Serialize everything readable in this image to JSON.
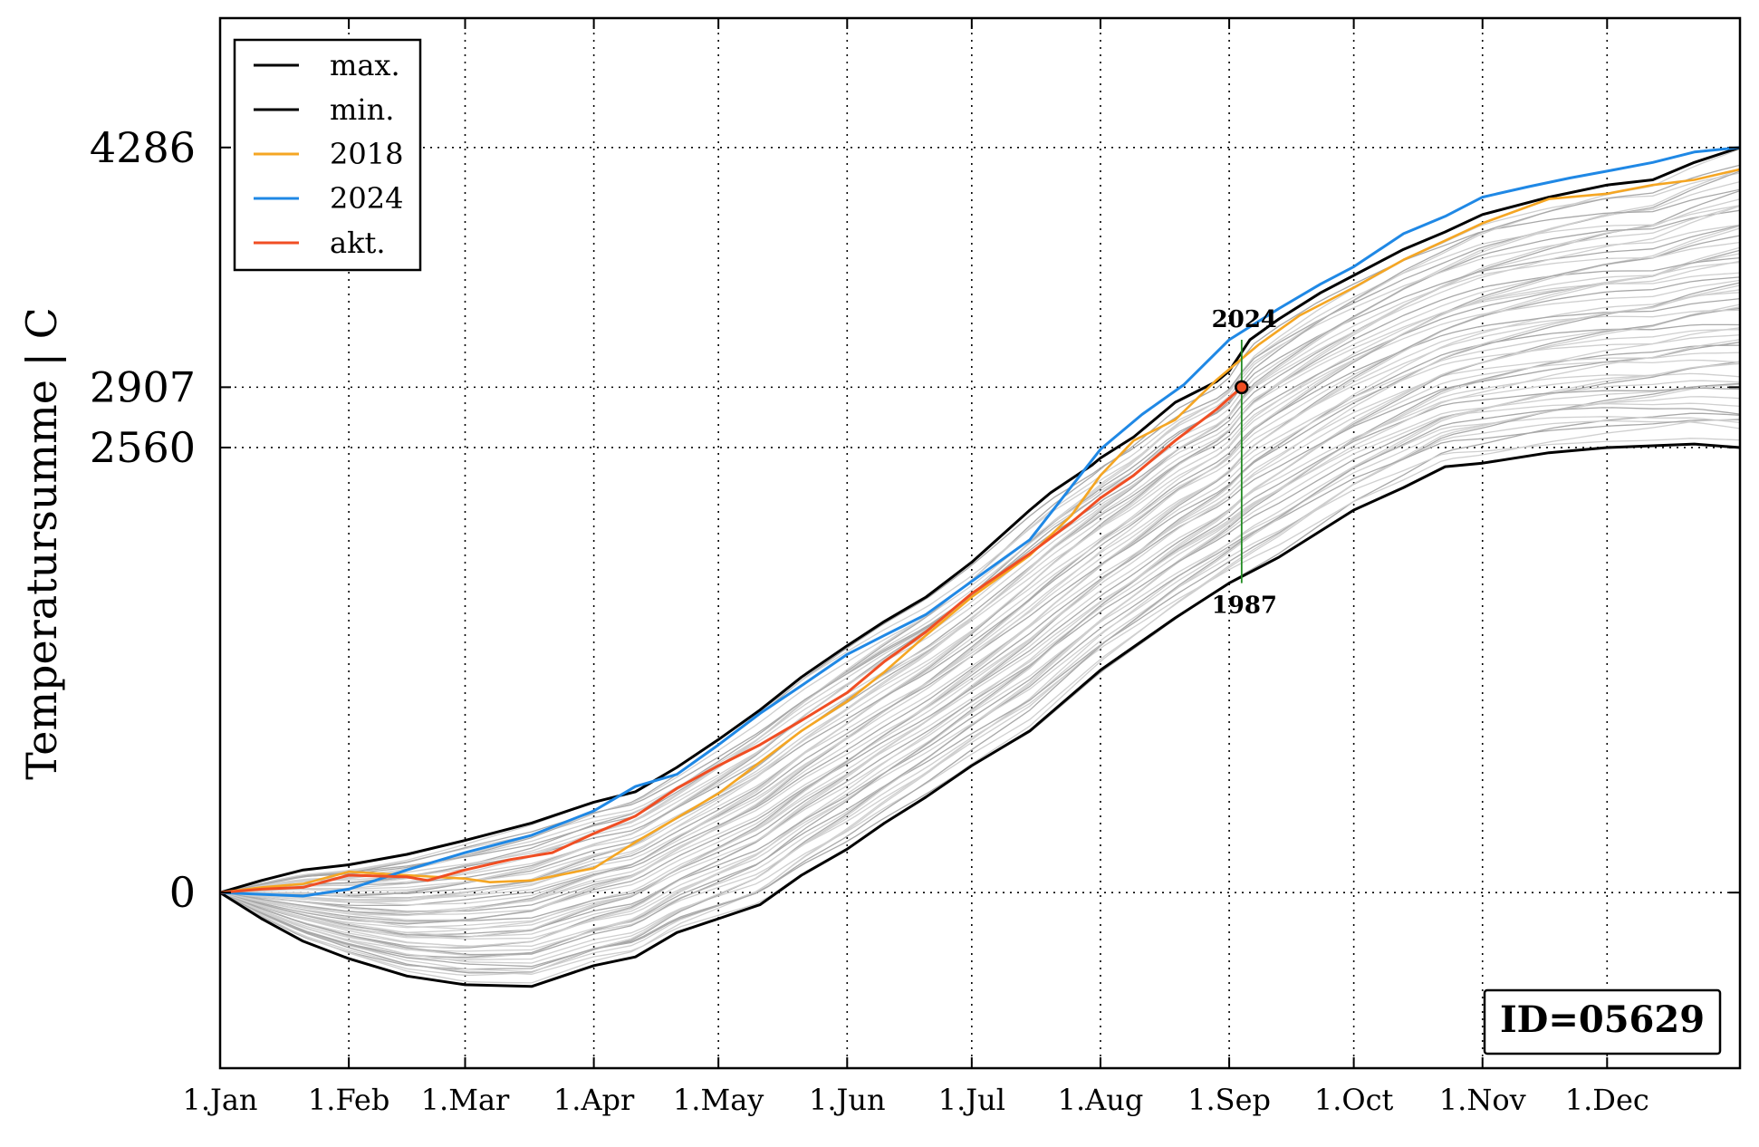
{
  "chart_data": {
    "type": "line",
    "ylabel": "Temperatursumme | C",
    "x_ticks": [
      "1.Jan",
      "1.Feb",
      "1.Mar",
      "1.Apr",
      "1.May",
      "1.Jun",
      "1.Jul",
      "1.Aug",
      "1.Sep",
      "1.Oct",
      "1.Nov",
      "1.Dec"
    ],
    "x_tick_days": [
      0,
      31,
      59,
      90,
      120,
      151,
      181,
      212,
      243,
      273,
      304,
      334
    ],
    "xlim": [
      0,
      366
    ],
    "y_ticks": [
      0,
      2560,
      2907,
      4286
    ],
    "ylim": [
      -1010,
      5030
    ],
    "grid": true,
    "legend_position": "top-left",
    "series": [
      {
        "name": "max.",
        "color": "#000000",
        "points": [
          [
            0,
            0
          ],
          [
            10,
            70
          ],
          [
            20,
            130
          ],
          [
            31,
            160
          ],
          [
            45,
            220
          ],
          [
            59,
            300
          ],
          [
            75,
            400
          ],
          [
            90,
            520
          ],
          [
            100,
            580
          ],
          [
            110,
            720
          ],
          [
            120,
            880
          ],
          [
            130,
            1050
          ],
          [
            140,
            1240
          ],
          [
            151,
            1420
          ],
          [
            160,
            1560
          ],
          [
            170,
            1700
          ],
          [
            181,
            1900
          ],
          [
            195,
            2200
          ],
          [
            200,
            2300
          ],
          [
            210,
            2460
          ],
          [
            212,
            2500
          ],
          [
            220,
            2620
          ],
          [
            230,
            2820
          ],
          [
            240,
            2940
          ],
          [
            243,
            3000
          ],
          [
            248,
            3180
          ],
          [
            255,
            3300
          ],
          [
            265,
            3450
          ],
          [
            273,
            3550
          ],
          [
            285,
            3700
          ],
          [
            295,
            3800
          ],
          [
            304,
            3900
          ],
          [
            320,
            4000
          ],
          [
            334,
            4070
          ],
          [
            345,
            4100
          ],
          [
            355,
            4200
          ],
          [
            366,
            4286
          ]
        ]
      },
      {
        "name": "min.",
        "color": "#000000",
        "points": [
          [
            0,
            0
          ],
          [
            10,
            -150
          ],
          [
            20,
            -280
          ],
          [
            31,
            -380
          ],
          [
            45,
            -480
          ],
          [
            59,
            -530
          ],
          [
            75,
            -540
          ],
          [
            90,
            -420
          ],
          [
            100,
            -370
          ],
          [
            110,
            -230
          ],
          [
            120,
            -150
          ],
          [
            130,
            -70
          ],
          [
            140,
            100
          ],
          [
            151,
            250
          ],
          [
            160,
            400
          ],
          [
            170,
            550
          ],
          [
            181,
            730
          ],
          [
            195,
            930
          ],
          [
            212,
            1280
          ],
          [
            230,
            1580
          ],
          [
            243,
            1780
          ],
          [
            255,
            1930
          ],
          [
            273,
            2200
          ],
          [
            285,
            2330
          ],
          [
            295,
            2450
          ],
          [
            304,
            2470
          ],
          [
            320,
            2530
          ],
          [
            334,
            2560
          ],
          [
            345,
            2570
          ],
          [
            355,
            2580
          ],
          [
            366,
            2560
          ]
        ]
      },
      {
        "name": "2018",
        "color": "#f5a623",
        "points": [
          [
            0,
            0
          ],
          [
            10,
            30
          ],
          [
            20,
            50
          ],
          [
            31,
            120
          ],
          [
            45,
            100
          ],
          [
            59,
            80
          ],
          [
            65,
            60
          ],
          [
            75,
            70
          ],
          [
            90,
            140
          ],
          [
            100,
            290
          ],
          [
            110,
            430
          ],
          [
            120,
            570
          ],
          [
            130,
            750
          ],
          [
            140,
            930
          ],
          [
            151,
            1100
          ],
          [
            160,
            1270
          ],
          [
            170,
            1480
          ],
          [
            181,
            1700
          ],
          [
            195,
            1940
          ],
          [
            205,
            2170
          ],
          [
            212,
            2400
          ],
          [
            220,
            2600
          ],
          [
            230,
            2720
          ],
          [
            240,
            2950
          ],
          [
            250,
            3150
          ],
          [
            260,
            3320
          ],
          [
            273,
            3480
          ],
          [
            285,
            3640
          ],
          [
            295,
            3750
          ],
          [
            304,
            3850
          ],
          [
            320,
            3990
          ],
          [
            334,
            4020
          ],
          [
            345,
            4070
          ],
          [
            355,
            4100
          ],
          [
            366,
            4160
          ]
        ]
      },
      {
        "name": "2024",
        "color": "#1f88e5",
        "points": [
          [
            0,
            0
          ],
          [
            10,
            -10
          ],
          [
            20,
            -20
          ],
          [
            31,
            20
          ],
          [
            45,
            130
          ],
          [
            59,
            230
          ],
          [
            75,
            330
          ],
          [
            90,
            470
          ],
          [
            100,
            610
          ],
          [
            110,
            680
          ],
          [
            120,
            850
          ],
          [
            130,
            1030
          ],
          [
            140,
            1190
          ],
          [
            151,
            1370
          ],
          [
            160,
            1480
          ],
          [
            170,
            1600
          ],
          [
            181,
            1790
          ],
          [
            195,
            2030
          ],
          [
            212,
            2550
          ],
          [
            222,
            2750
          ],
          [
            232,
            2920
          ],
          [
            243,
            3180
          ],
          [
            255,
            3360
          ],
          [
            265,
            3500
          ],
          [
            273,
            3600
          ],
          [
            285,
            3790
          ],
          [
            295,
            3890
          ],
          [
            304,
            4000
          ],
          [
            315,
            4060
          ],
          [
            325,
            4110
          ],
          [
            334,
            4150
          ],
          [
            345,
            4200
          ],
          [
            355,
            4260
          ],
          [
            366,
            4286
          ]
        ]
      },
      {
        "name": "akt.",
        "color": "#f04e23",
        "points": [
          [
            0,
            0
          ],
          [
            10,
            20
          ],
          [
            20,
            30
          ],
          [
            31,
            100
          ],
          [
            45,
            90
          ],
          [
            50,
            70
          ],
          [
            59,
            130
          ],
          [
            70,
            190
          ],
          [
            80,
            230
          ],
          [
            90,
            340
          ],
          [
            100,
            440
          ],
          [
            110,
            600
          ],
          [
            120,
            730
          ],
          [
            130,
            850
          ],
          [
            140,
            990
          ],
          [
            151,
            1150
          ],
          [
            160,
            1330
          ],
          [
            170,
            1500
          ],
          [
            181,
            1720
          ],
          [
            195,
            1950
          ],
          [
            205,
            2130
          ],
          [
            212,
            2270
          ],
          [
            220,
            2400
          ],
          [
            230,
            2600
          ],
          [
            240,
            2780
          ],
          [
            246,
            2907
          ]
        ]
      }
    ],
    "annotation": {
      "marker_day": 246,
      "marker_value": 2907,
      "range_low": 1780,
      "range_high": 3180,
      "label_high": "2024",
      "label_low": "1987",
      "line_color": "#228b22",
      "marker_color": "#f04e23"
    },
    "id_box": "ID=05629"
  }
}
